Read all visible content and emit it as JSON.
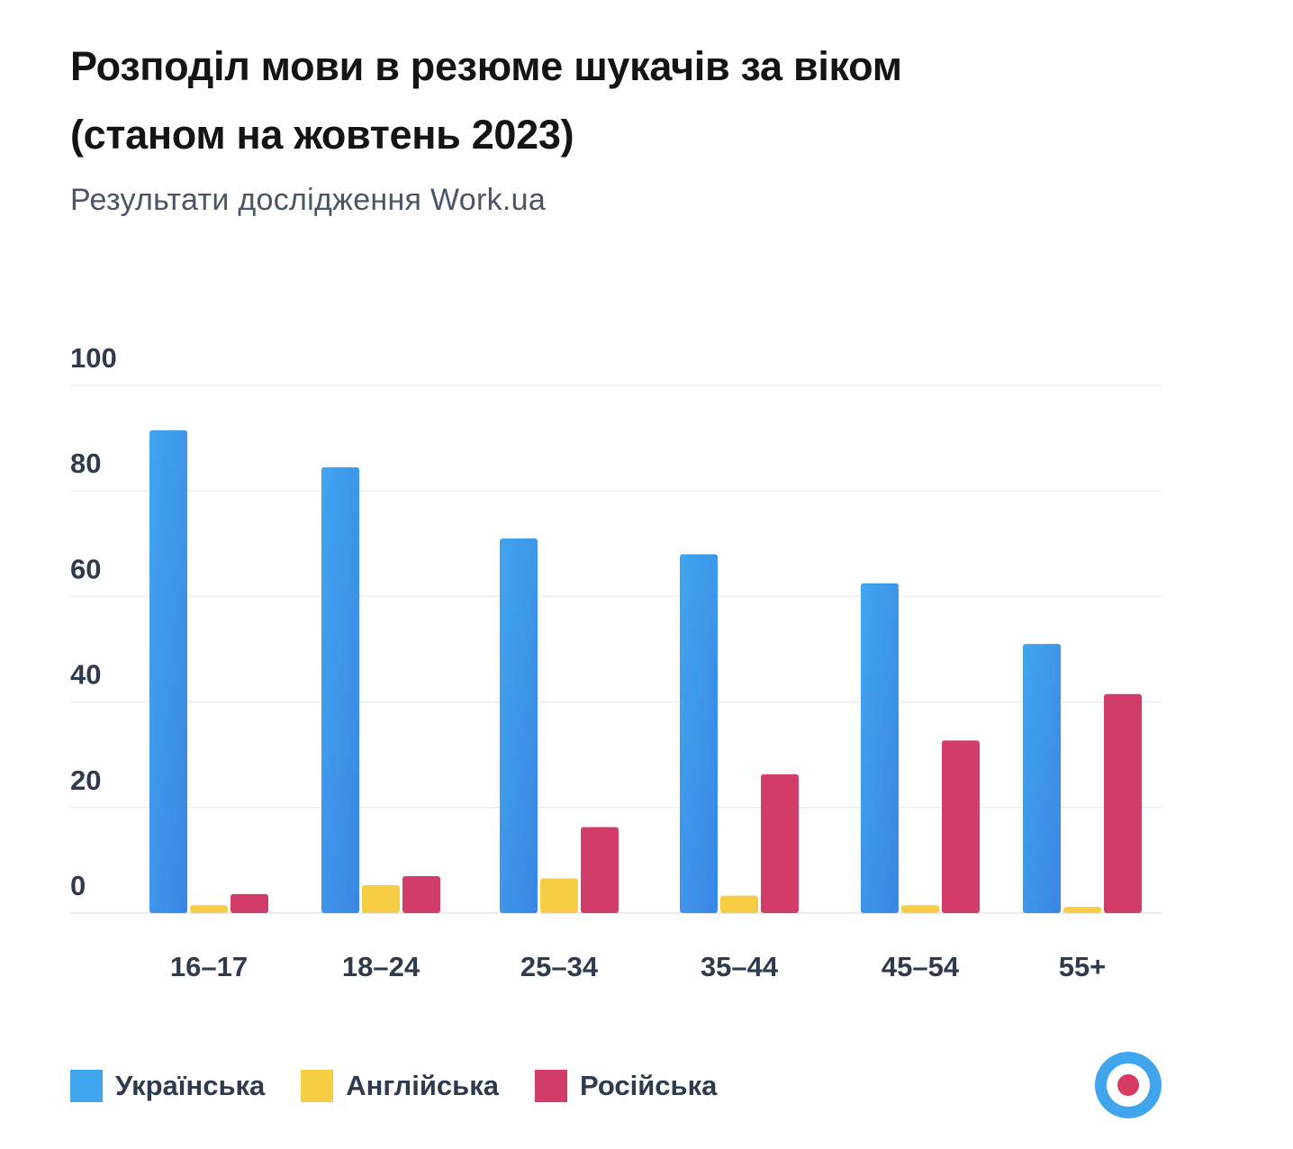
{
  "chart_data": {
    "type": "bar",
    "title": "Розподіл мови в резюме шукачів за віком",
    "title_line2": "(станом на жовтень 2023)",
    "subtitle": "Результати дослідження Work.ua",
    "categories": [
      "16–17",
      "18–24",
      "25–34",
      "35–44",
      "45–54",
      "55+"
    ],
    "series": [
      {
        "name": "Українська",
        "color": "#41a5ee",
        "color_dark": "#3a86e4",
        "values": [
          91.5,
          84.5,
          71,
          68,
          62.5,
          51
        ]
      },
      {
        "name": "Англійська",
        "color": "#f8cd46",
        "color_dark": "#f8cd46",
        "values": [
          1.5,
          5.3,
          6.6,
          3.3,
          1.5,
          1.2
        ]
      },
      {
        "name": "Російська",
        "color": "#d23c69",
        "color_dark": "#d23c69",
        "values": [
          3.6,
          7,
          16.3,
          26.3,
          32.7,
          41.5
        ]
      }
    ],
    "yticks": [
      0,
      20,
      40,
      60,
      80,
      100
    ],
    "ylim": [
      0,
      100
    ],
    "xlabel": "",
    "ylabel": "",
    "grid": true,
    "legend_position": "bottom-left"
  },
  "logo": {
    "icon": "work-ua-logo-icon",
    "outer_color": "#41a5ee",
    "dot_color": "#d63a65"
  }
}
